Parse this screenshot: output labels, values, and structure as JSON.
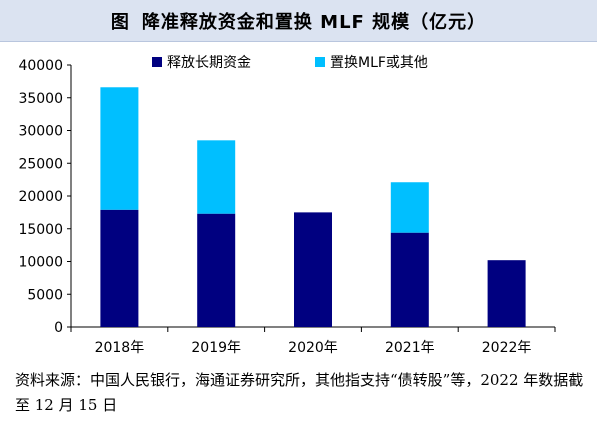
{
  "title": {
    "label": "图",
    "text": "降准释放资金和置换 MLF 规模（亿元）"
  },
  "chart_data": {
    "type": "bar",
    "stacked": true,
    "categories": [
      "2018年",
      "2019年",
      "2020年",
      "2021年",
      "2022年"
    ],
    "series": [
      {
        "name": "释放长期资金",
        "color": "#000080",
        "values": [
          17900,
          17300,
          17500,
          14400,
          10200
        ]
      },
      {
        "name": "置换MLF或其他",
        "color": "#00bfff",
        "values": [
          18700,
          11200,
          0,
          7700,
          0
        ]
      }
    ],
    "ylim": [
      0,
      40000
    ],
    "yticks": [
      0,
      5000,
      10000,
      15000,
      20000,
      25000,
      30000,
      35000,
      40000
    ],
    "legend_position": "top",
    "grid": false
  },
  "source_note": "资料来源：中国人民银行，海通证券研究所，其他指支持“债转股”等，2022 年数据截至 12 月 15 日"
}
